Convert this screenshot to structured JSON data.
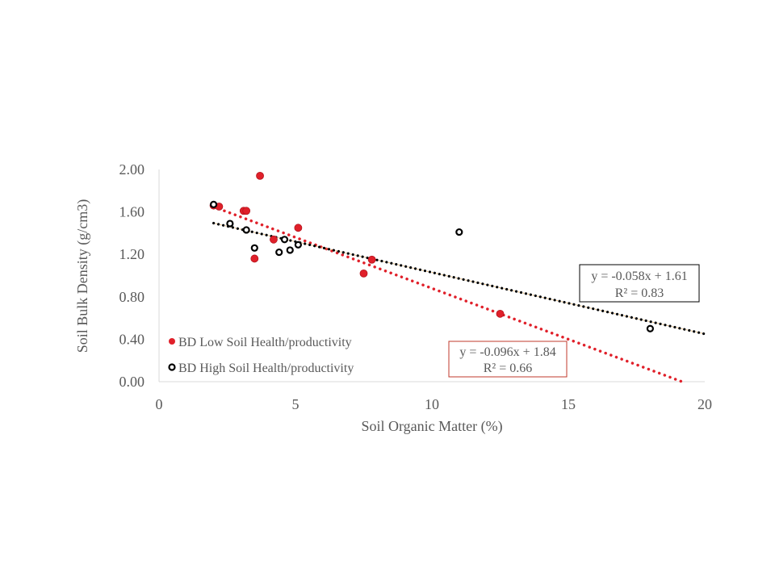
{
  "chart_data": {
    "type": "scatter",
    "xlabel": "Soil Organic Matter (%)",
    "ylabel": "Soil Bulk Density (g/cm3)",
    "xlim": [
      0,
      20
    ],
    "ylim": [
      0,
      2.0
    ],
    "x_ticks": [
      "0",
      "5",
      "10",
      "15",
      "20"
    ],
    "y_ticks": [
      "0.00",
      "0.40",
      "0.80",
      "1.20",
      "1.60",
      "2.00"
    ],
    "grid": false,
    "legend_placement": "bottom-left inside plot",
    "series": [
      {
        "name": "BD Low Soil Health/productivity",
        "color": "#e0202a",
        "marker": "filled-circle",
        "points": [
          {
            "x": 2.0,
            "y": 1.66
          },
          {
            "x": 2.2,
            "y": 1.65
          },
          {
            "x": 3.1,
            "y": 1.61
          },
          {
            "x": 3.2,
            "y": 1.61
          },
          {
            "x": 3.7,
            "y": 1.94
          },
          {
            "x": 4.2,
            "y": 1.34
          },
          {
            "x": 5.1,
            "y": 1.45
          },
          {
            "x": 3.5,
            "y": 1.16
          },
          {
            "x": 7.5,
            "y": 1.02
          },
          {
            "x": 7.8,
            "y": 1.15
          },
          {
            "x": 12.5,
            "y": 0.64
          }
        ],
        "trendline": {
          "slope": -0.096,
          "intercept": 1.84,
          "x_range": [
            2.0,
            19.2
          ]
        },
        "equation": "y = -0.096x + 1.84",
        "r2": "R² = 0.66",
        "box_color": "#c0392b"
      },
      {
        "name": "BD High Soil Health/productivity",
        "color": "#000000",
        "ring_color": "#7a3b10",
        "marker": "ring-circle",
        "points": [
          {
            "x": 2.0,
            "y": 1.67
          },
          {
            "x": 2.6,
            "y": 1.49
          },
          {
            "x": 3.2,
            "y": 1.43
          },
          {
            "x": 3.5,
            "y": 1.26
          },
          {
            "x": 4.4,
            "y": 1.22
          },
          {
            "x": 4.6,
            "y": 1.34
          },
          {
            "x": 4.8,
            "y": 1.24
          },
          {
            "x": 5.1,
            "y": 1.29
          },
          {
            "x": 11.0,
            "y": 1.41
          },
          {
            "x": 18.0,
            "y": 0.5
          }
        ],
        "trendline": {
          "slope": -0.058,
          "intercept": 1.61,
          "x_range": [
            2.0,
            20.0
          ]
        },
        "equation": "y = -0.058x + 1.61",
        "r2": "R² = 0.83",
        "box_color": "#000000"
      }
    ]
  }
}
